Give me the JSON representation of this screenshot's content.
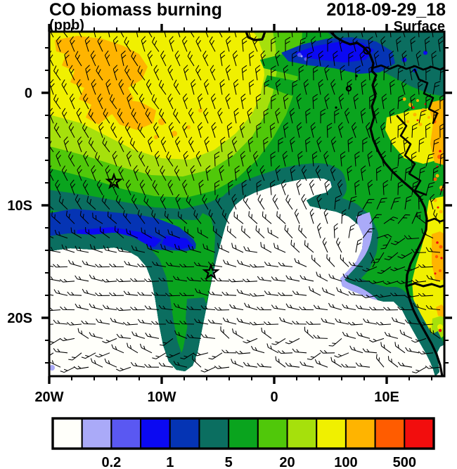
{
  "header": {
    "title": "CO biomass burning",
    "datetime": "2018-09-29_18",
    "units": "(ppb)",
    "level": "Surface"
  },
  "axes": {
    "lon": {
      "labels": [
        "20W",
        "10W",
        "0",
        "10E"
      ],
      "label_lons": [
        -20,
        -10,
        0,
        10
      ],
      "minor_step_deg": 2
    },
    "lat": {
      "labels": [
        "0",
        "10S",
        "20S"
      ],
      "label_lats": [
        0,
        -10,
        -20
      ],
      "minor_step_deg": 2
    }
  },
  "colorbar": {
    "colors": [
      "#fffffa",
      "#aaaaf8",
      "#5a58f2",
      "#0b09f2",
      "#0534b4",
      "#0b6e60",
      "#0aa41e",
      "#50c80a",
      "#a6e00c",
      "#f0f000",
      "#ffb400",
      "#ff5c00",
      "#f20d0d"
    ],
    "tick_labels": [
      "0.2",
      "1",
      "5",
      "20",
      "100",
      "500"
    ],
    "tick_boundary_indices": [
      2,
      4,
      6,
      8,
      10,
      12
    ]
  },
  "style": {
    "ink": "#000000",
    "background": "#ffffff"
  },
  "chart_data": {
    "type": "heatmap",
    "title": "CO biomass burning",
    "valid_time": "2018-09-29_18",
    "units": "ppb",
    "level": "Surface",
    "extent": {
      "lon_min": -20,
      "lon_max": 15.1,
      "lat_min": -25.2,
      "lat_max": 5.4
    },
    "contour_levels_labeled": [
      0.2,
      1,
      5,
      20,
      100,
      500
    ],
    "palette": [
      "#fffffa",
      "#aaaaf8",
      "#5a58f2",
      "#0b09f2",
      "#0534b4",
      "#0b6e60",
      "#0aa41e",
      "#50c80a",
      "#a6e00c",
      "#f0f000",
      "#ffb400",
      "#ff5c00",
      "#f20d0d"
    ],
    "overlays": [
      "wind-barbs",
      "coastline",
      "country-borders",
      "islands",
      "star-markers"
    ],
    "markers": [
      {
        "symbol": "star",
        "lon": -14.25,
        "lat": -7.9
      },
      {
        "symbol": "star",
        "lon": -5.62,
        "lat": -15.95
      }
    ],
    "field_summary": [
      {
        "region": "northwest ocean plume, north of ~5S and west of ~5E",
        "co_ppb": "100-500, orange maxima 200+ near 0 to 3S / 12-19W"
      },
      {
        "region": "central diagonal gradient band",
        "co_ppb": "1-100 decreasing toward southeast"
      },
      {
        "region": "southwest and southeast ocean",
        "co_ppb": "below 0.2 (background, white)"
      },
      {
        "region": "narrow filament curling south near 5-7W from 12S to 23S",
        "co_ppb": "0.5-20"
      },
      {
        "region": "cyclonic eddy near 8E, 14S",
        "co_ppb": "0.2-20"
      },
      {
        "region": "African interior along eastern edge",
        "co_ppb": "20-500 with local fire hotspots (red specks)"
      }
    ]
  }
}
